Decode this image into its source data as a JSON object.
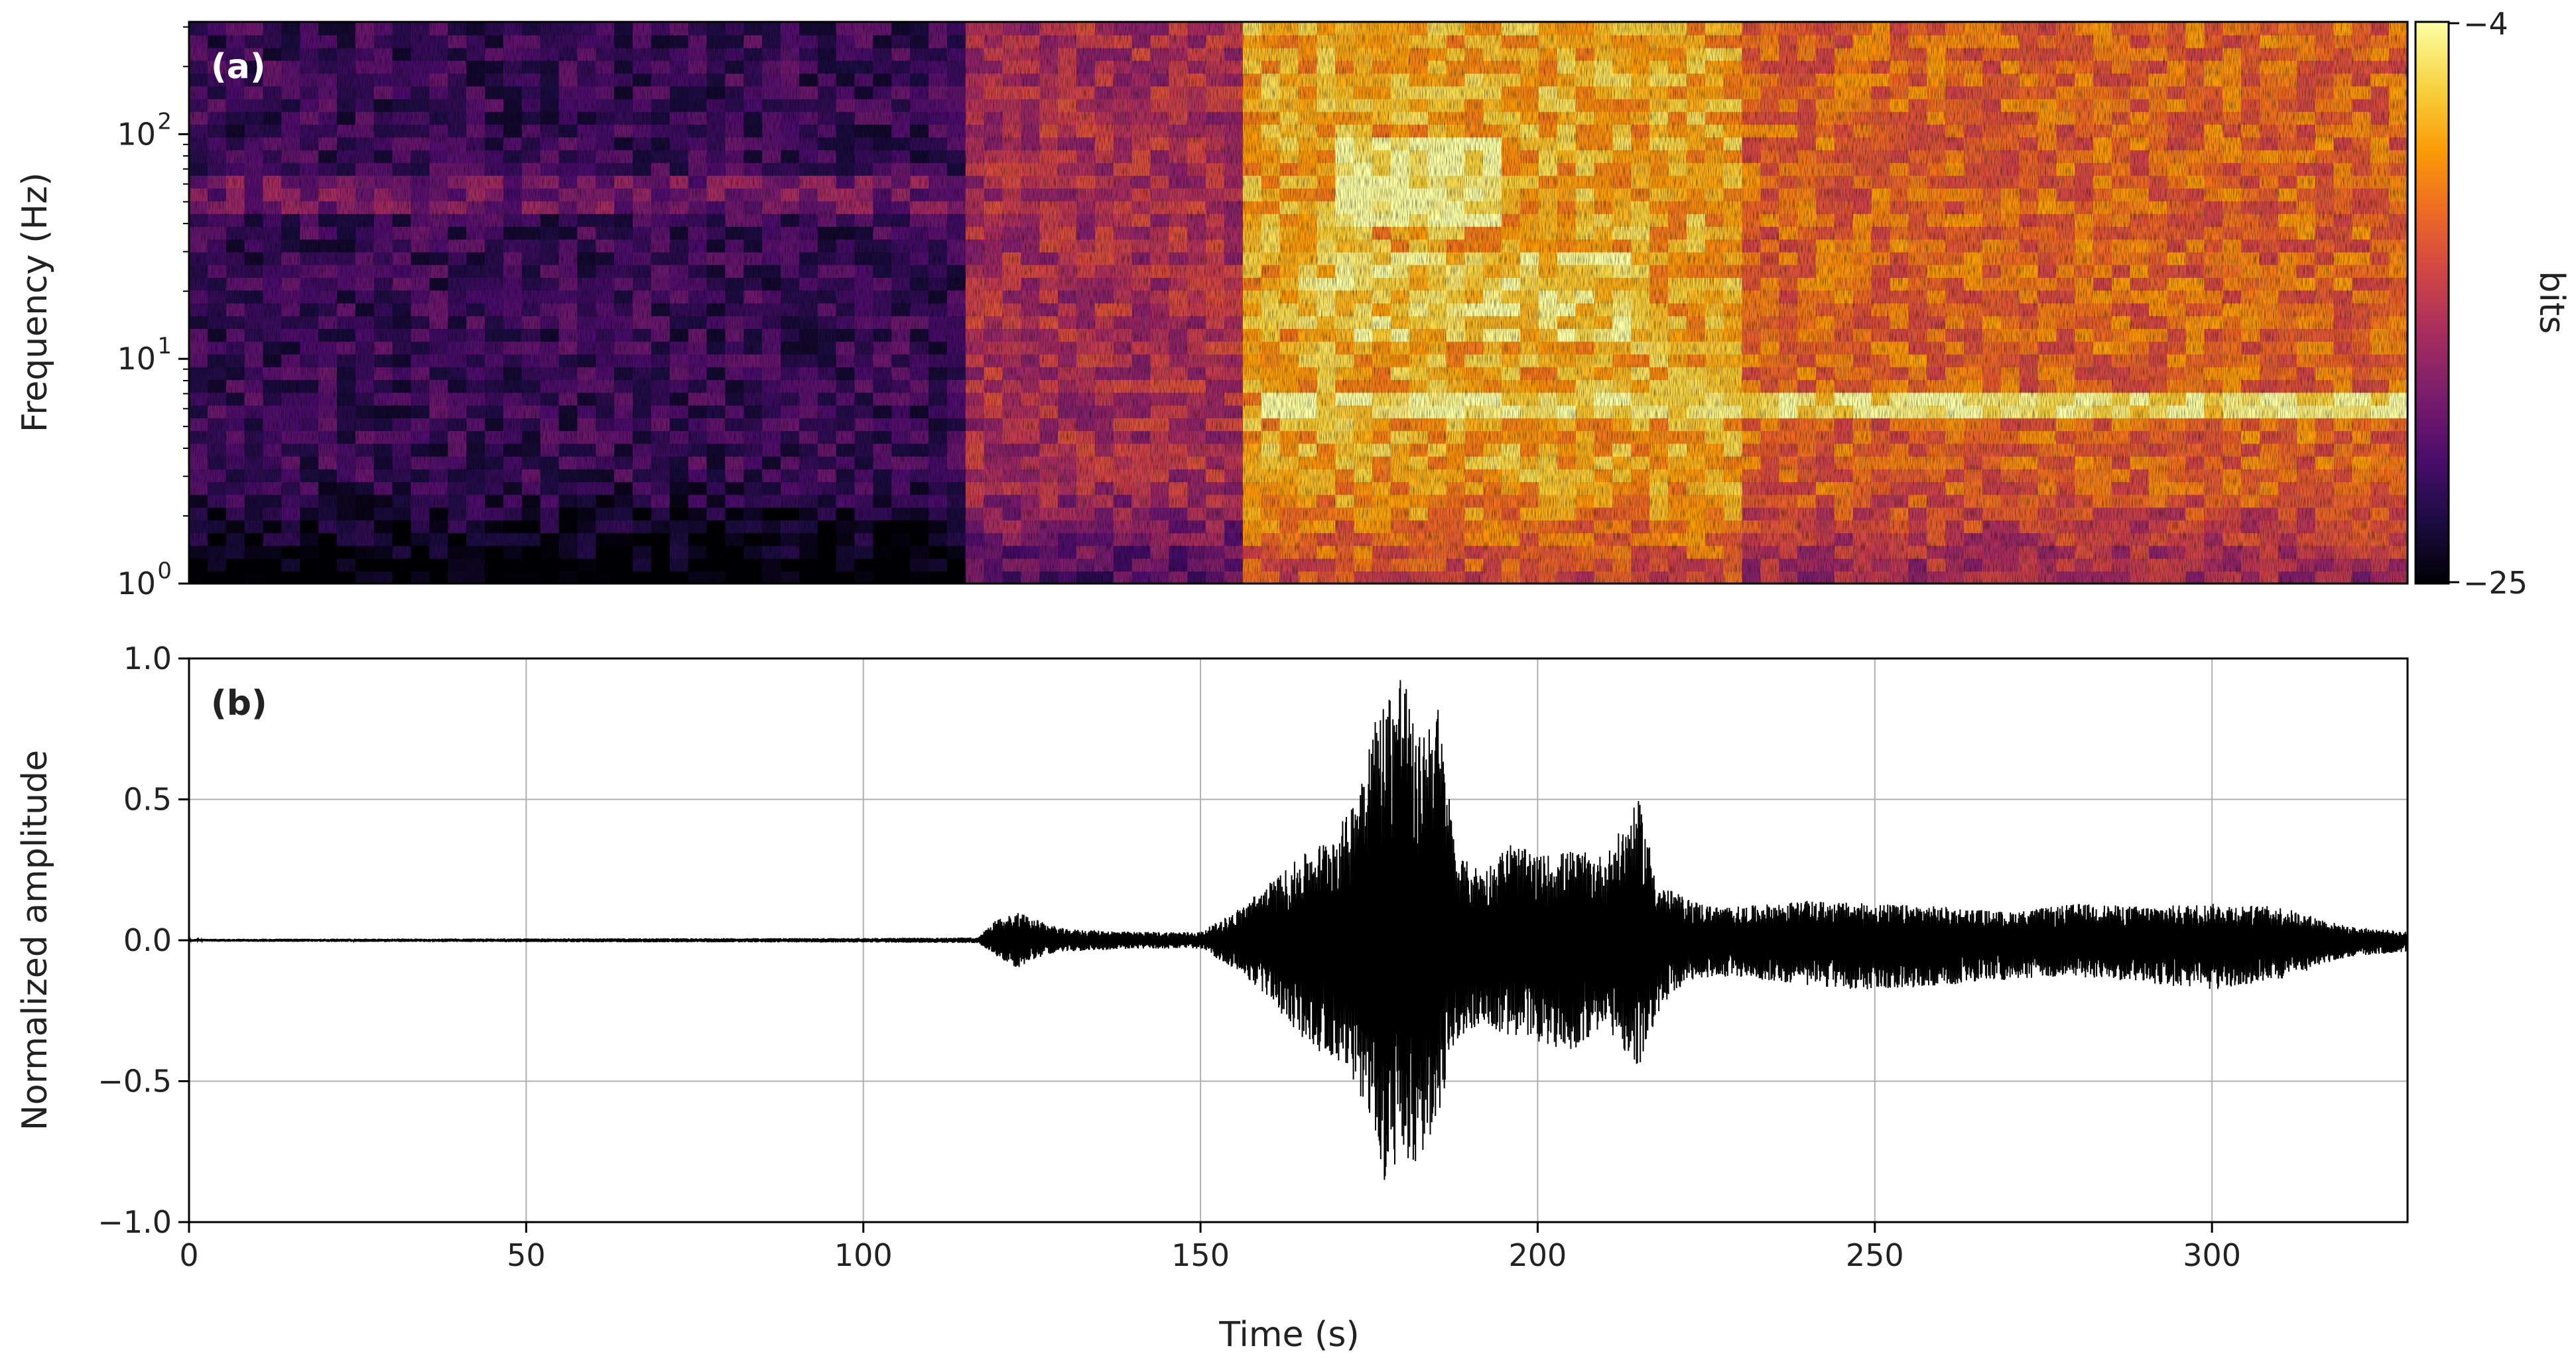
{
  "chart_data": [
    {
      "type": "heatmap",
      "panel_label": "(a)",
      "ylabel": "Frequency (Hz)",
      "yscale": "log",
      "ylim": [
        1,
        316
      ],
      "yticks": [
        {
          "value": 1,
          "base": "10",
          "exp": "0"
        },
        {
          "value": 10,
          "base": "10",
          "exp": "1"
        },
        {
          "value": 100,
          "base": "10",
          "exp": "2"
        }
      ],
      "xlim": [
        0,
        329
      ],
      "colorbar": {
        "label": "bits",
        "min": -25,
        "max": -4,
        "ticks": [
          "−4",
          "−25"
        ],
        "colormap": [
          "#000004",
          "#1b0c41",
          "#4a0c6b",
          "#781c6d",
          "#a52c60",
          "#cf4446",
          "#ed6925",
          "#fb9b06",
          "#f7d13d",
          "#fcffa4"
        ]
      },
      "regions": [
        {
          "t_start": 0,
          "t_end": 115,
          "level": -21,
          "description_level": "low"
        },
        {
          "t_start": 115,
          "t_end": 155,
          "level": -15
        },
        {
          "t_start": 155,
          "t_end": 230,
          "level": -8
        },
        {
          "t_start": 230,
          "t_end": 329,
          "level": -11
        }
      ],
      "bands_hz": [
        {
          "f_low": 5.5,
          "f_high": 7.5,
          "t_start": 160,
          "t_end": 329,
          "level": -5
        },
        {
          "f_low": 40,
          "f_high": 100,
          "t_start": 170,
          "t_end": 195,
          "level": -4
        },
        {
          "f_low": 12,
          "f_high": 30,
          "t_start": 165,
          "t_end": 215,
          "level": -6
        }
      ]
    },
    {
      "type": "line",
      "panel_label": "(b)",
      "xlabel": "Time (s)",
      "ylabel": "Normalized amplitude",
      "xlim": [
        0,
        329
      ],
      "ylim": [
        -1.0,
        1.0
      ],
      "xticks": [
        "0",
        "50",
        "100",
        "150",
        "200",
        "250",
        "300"
      ],
      "yticks": [
        "1.0",
        "0.5",
        "0.0",
        "−0.5",
        "−1.0"
      ],
      "grid": true,
      "series": [
        {
          "color": "#000000",
          "envelope": {
            "t": [
              0,
              100,
              117,
              120,
              123,
              127,
              130,
              140,
              150,
              155,
              160,
              165,
              168,
              172,
              175,
              177,
              179,
              180,
              182,
              185,
              188,
              192,
              196,
              200,
              205,
              210,
              215,
              218,
              222,
              226,
              230,
              240,
              250,
              260,
              270,
              280,
              290,
              300,
              310,
              320,
              329
            ],
            "upper": [
              0.005,
              0.008,
              0.01,
              0.08,
              0.1,
              0.06,
              0.04,
              0.03,
              0.03,
              0.1,
              0.2,
              0.3,
              0.35,
              0.45,
              0.75,
              0.85,
              0.95,
              1.0,
              0.7,
              0.88,
              0.3,
              0.25,
              0.35,
              0.3,
              0.32,
              0.3,
              0.5,
              0.2,
              0.15,
              0.12,
              0.12,
              0.14,
              0.13,
              0.12,
              0.1,
              0.13,
              0.12,
              0.13,
              0.12,
              0.05,
              0.03
            ],
            "lower": [
              -0.005,
              -0.008,
              -0.01,
              -0.06,
              -0.1,
              -0.05,
              -0.04,
              -0.03,
              -0.03,
              -0.1,
              -0.2,
              -0.35,
              -0.4,
              -0.45,
              -0.65,
              -0.88,
              -0.8,
              -0.85,
              -0.82,
              -0.65,
              -0.35,
              -0.3,
              -0.35,
              -0.36,
              -0.4,
              -0.3,
              -0.47,
              -0.25,
              -0.15,
              -0.13,
              -0.13,
              -0.16,
              -0.18,
              -0.16,
              -0.14,
              -0.13,
              -0.15,
              -0.18,
              -0.14,
              -0.06,
              -0.04
            ]
          }
        }
      ]
    }
  ]
}
